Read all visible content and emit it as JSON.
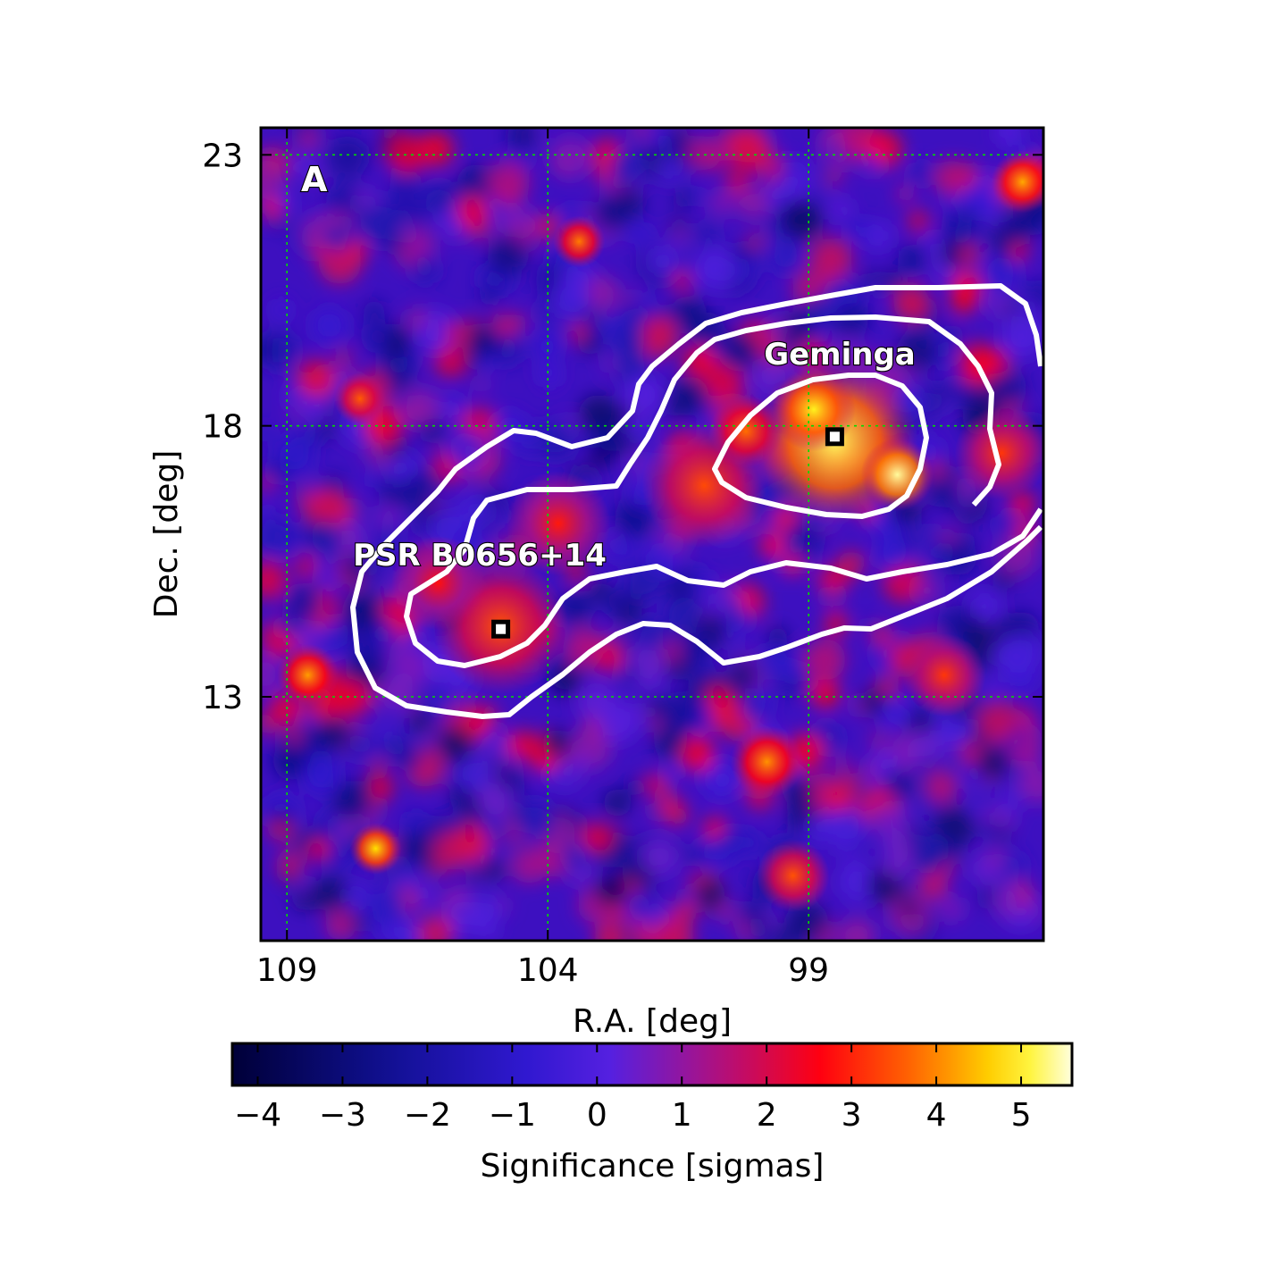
{
  "chart_data": {
    "type": "heatmap",
    "panel_label": "A",
    "xlabel": "R.A. [deg]",
    "ylabel": "Dec. [deg]",
    "xlim": [
      109.5,
      94.5
    ],
    "ylim": [
      8.5,
      23.5
    ],
    "x_ticks": [
      109,
      104,
      99
    ],
    "y_ticks": [
      23,
      18,
      13
    ],
    "grid": true,
    "grid_color": "#00dd00",
    "colormap": "gnuplot2",
    "colorbar": {
      "label": "Significance [sigmas]",
      "range": [
        -4.3,
        5.6
      ],
      "ticks": [
        -4,
        -3,
        -2,
        -1,
        0,
        1,
        2,
        3,
        4,
        5
      ],
      "tick_labels": [
        "−4",
        "−3",
        "−2",
        "−1",
        "0",
        "1",
        "2",
        "3",
        "4",
        "5"
      ]
    },
    "sources": [
      {
        "name": "Geminga",
        "ra": 98.5,
        "dec": 17.8
      },
      {
        "name": "PSR B0656+14",
        "ra": 104.9,
        "dec": 14.25
      }
    ],
    "contours": {
      "color": "#ffffff",
      "levels": [
        "inner",
        "outer"
      ]
    },
    "bright_regions": [
      {
        "ra": 98.5,
        "dec": 17.7,
        "sigma": 5.2,
        "radius": 1.6
      },
      {
        "ra": 97.3,
        "dec": 17.1,
        "sigma": 5.4,
        "radius": 0.7
      },
      {
        "ra": 98.9,
        "dec": 18.3,
        "sigma": 5.0,
        "radius": 0.8
      },
      {
        "ra": 101.0,
        "dec": 16.9,
        "sigma": 3.4,
        "radius": 1.2
      },
      {
        "ra": 100.2,
        "dec": 17.9,
        "sigma": 3.8,
        "radius": 0.7
      },
      {
        "ra": 104.9,
        "dec": 14.3,
        "sigma": 3.5,
        "radius": 1.3
      },
      {
        "ra": 103.8,
        "dec": 16.2,
        "sigma": 2.9,
        "radius": 1.0
      },
      {
        "ra": 106.1,
        "dec": 15.1,
        "sigma": 2.8,
        "radius": 0.9
      },
      {
        "ra": 95.3,
        "dec": 17.5,
        "sigma": 3.2,
        "radius": 0.9
      },
      {
        "ra": 94.9,
        "dec": 22.5,
        "sigma": 4.3,
        "radius": 0.6
      },
      {
        "ra": 107.3,
        "dec": 10.2,
        "sigma": 4.8,
        "radius": 0.5
      },
      {
        "ra": 108.6,
        "dec": 13.4,
        "sigma": 4.2,
        "radius": 0.6
      },
      {
        "ra": 99.8,
        "dec": 11.8,
        "sigma": 4.1,
        "radius": 0.7
      },
      {
        "ra": 103.4,
        "dec": 21.4,
        "sigma": 3.9,
        "radius": 0.5
      },
      {
        "ra": 107.6,
        "dec": 18.5,
        "sigma": 3.6,
        "radius": 0.5
      },
      {
        "ra": 99.3,
        "dec": 9.7,
        "sigma": 3.5,
        "radius": 0.7
      },
      {
        "ra": 96.4,
        "dec": 13.4,
        "sigma": 3.2,
        "radius": 0.8
      }
    ]
  }
}
